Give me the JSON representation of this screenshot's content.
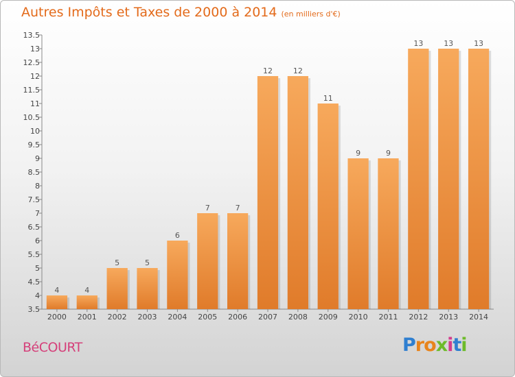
{
  "header": {
    "title": "Autres Impôts et Taxes de 2000 à 2014",
    "unit": "(en milliers d'€)"
  },
  "footer": {
    "city": "BéCOURT",
    "logo": "Proxiti"
  },
  "colors": {
    "bar_light": "#f7a95c",
    "bar_dark": "#e07b2a",
    "title": "#e36a1a",
    "city": "#d5407a"
  },
  "chart_data": {
    "type": "bar",
    "categories": [
      "2000",
      "2001",
      "2002",
      "2003",
      "2004",
      "2005",
      "2006",
      "2007",
      "2008",
      "2009",
      "2010",
      "2011",
      "2012",
      "2013",
      "2014"
    ],
    "values": [
      4,
      4,
      5,
      5,
      6,
      7,
      7,
      12,
      12,
      11,
      9,
      9,
      13,
      13,
      13
    ],
    "ylim": [
      3.5,
      13.5
    ],
    "yticks": [
      "3.5",
      "4",
      "4.5",
      "5",
      "5.5",
      "6",
      "6.5",
      "7",
      "7.5",
      "8",
      "8.5",
      "9",
      "9.5",
      "10",
      "10.5",
      "11",
      "11.5",
      "12",
      "12.5",
      "13",
      "13.5"
    ],
    "grid": false,
    "xlabel": "",
    "ylabel": ""
  }
}
